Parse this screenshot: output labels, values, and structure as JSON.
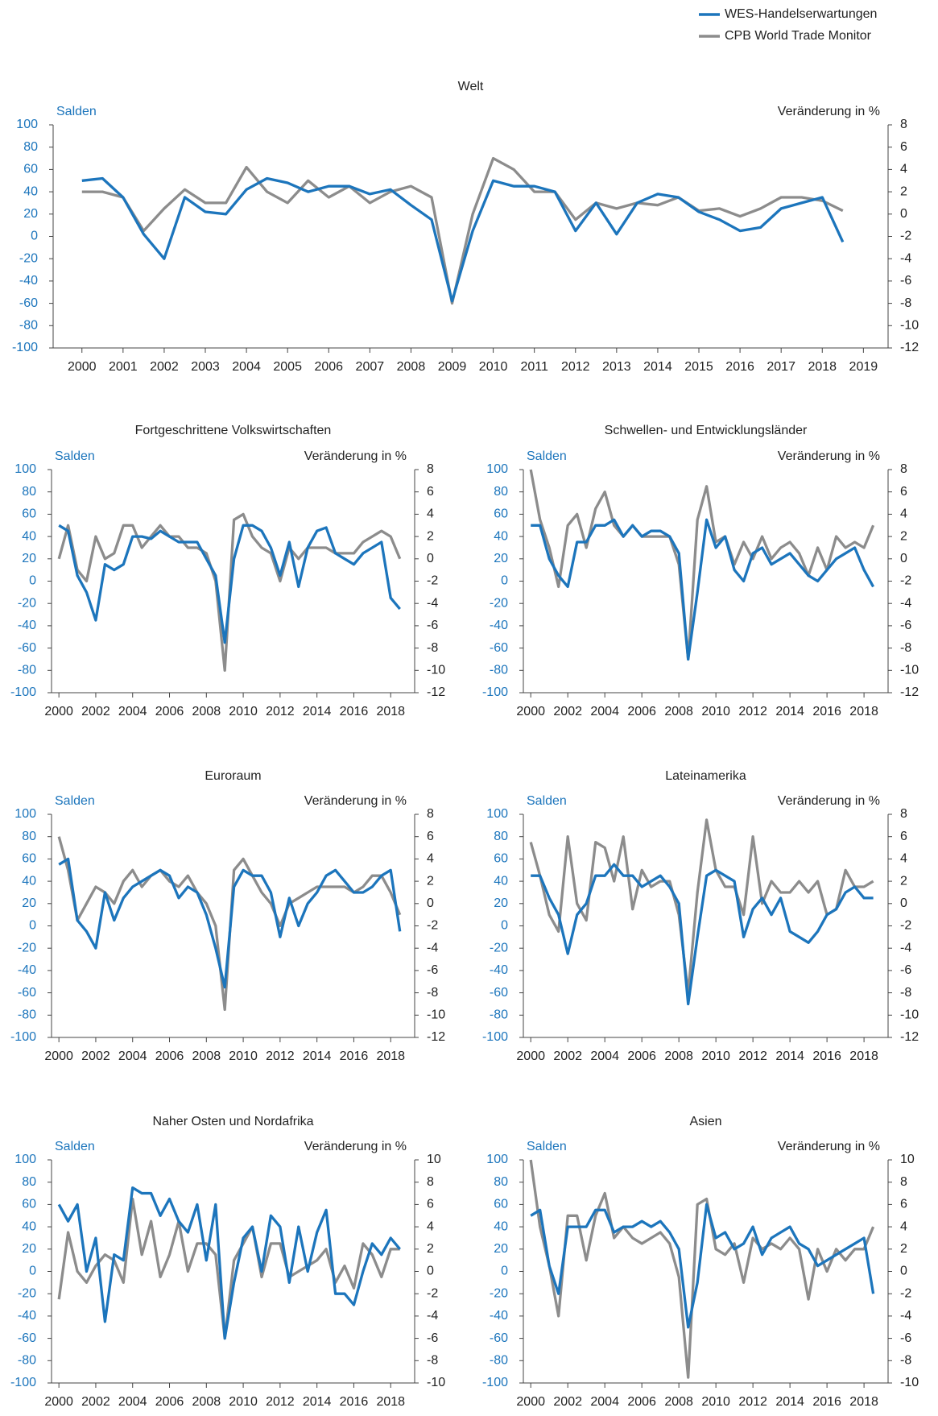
{
  "chart_data": [
    {
      "type": "line",
      "title": "Welt",
      "ylabel": "Salden",
      "y2label": "Veränderung in %",
      "legend": "upper right",
      "x": [
        2000,
        2000.5,
        2001,
        2001.5,
        2002,
        2002.5,
        2003,
        2003.5,
        2004,
        2004.5,
        2005,
        2005.5,
        2006,
        2006.5,
        2007,
        2007.5,
        2008,
        2008.5,
        2009,
        2009.5,
        2010,
        2010.5,
        2011,
        2011.5,
        2012,
        2012.5,
        2013,
        2013.5,
        2014,
        2014.5,
        2015,
        2015.5,
        2016,
        2016.5,
        2017,
        2017.5,
        2018,
        2018.5
      ],
      "xlim": [
        1999.3,
        2019.6
      ],
      "xticks": [
        2000,
        2001,
        2002,
        2003,
        2004,
        2005,
        2006,
        2007,
        2008,
        2009,
        2010,
        2011,
        2012,
        2013,
        2014,
        2015,
        2016,
        2017,
        2018,
        2019
      ],
      "ylim": [
        -100,
        100
      ],
      "yticks": [
        -100,
        -80,
        -60,
        -40,
        -20,
        0,
        20,
        40,
        60,
        80,
        100
      ],
      "y2lim": [
        -12,
        8
      ],
      "y2ticks": [
        -12,
        -10,
        -8,
        -6,
        -4,
        -2,
        0,
        2,
        4,
        6,
        8
      ],
      "series": [
        {
          "name": "WES-Handelserwartungen",
          "color": "#1c75bc",
          "values": [
            50,
            52,
            35,
            2,
            -20,
            35,
            22,
            20,
            42,
            52,
            48,
            40,
            45,
            45,
            38,
            42,
            28,
            15,
            -58,
            5,
            50,
            45,
            45,
            40,
            5,
            30,
            2,
            30,
            38,
            35,
            22,
            15,
            5,
            8,
            25,
            30,
            35,
            -5
          ]
        },
        {
          "name": "CPB World Trade Monitor",
          "color": "#8c8c8c",
          "axis": "y2",
          "values": [
            2,
            2,
            1.5,
            -1.5,
            0.5,
            2.2,
            1,
            1,
            4.2,
            2,
            1,
            3,
            1.5,
            2.5,
            1,
            2,
            2.5,
            1.5,
            -8,
            0,
            5,
            4,
            2,
            2,
            -0.5,
            1,
            0.5,
            1,
            0.8,
            1.5,
            0.3,
            0.5,
            -0.2,
            0.5,
            1.5,
            1.5,
            1.2,
            0.3
          ]
        }
      ]
    },
    {
      "type": "line",
      "title": "Fortgeschrittene Volkswirtschaften",
      "ylabel": "Salden",
      "y2label": "Veränderung in %",
      "x": [
        2000,
        2000.5,
        2001,
        2001.5,
        2002,
        2002.5,
        2003,
        2003.5,
        2004,
        2004.5,
        2005,
        2005.5,
        2006,
        2006.5,
        2007,
        2007.5,
        2008,
        2008.5,
        2009,
        2009.5,
        2010,
        2010.5,
        2011,
        2011.5,
        2012,
        2012.5,
        2013,
        2013.5,
        2014,
        2014.5,
        2015,
        2015.5,
        2016,
        2016.5,
        2017,
        2017.5,
        2018,
        2018.5
      ],
      "xlim": [
        1999.6,
        2019.3
      ],
      "xticks": [
        2000,
        2002,
        2004,
        2006,
        2008,
        2010,
        2012,
        2014,
        2016,
        2018
      ],
      "ylim": [
        -100,
        100
      ],
      "yticks": [
        -100,
        -80,
        -60,
        -40,
        -20,
        0,
        20,
        40,
        60,
        80,
        100
      ],
      "y2lim": [
        -12,
        8
      ],
      "y2ticks": [
        -12,
        -10,
        -8,
        -6,
        -4,
        -2,
        0,
        2,
        4,
        6,
        8
      ],
      "series": [
        {
          "color": "#1c75bc",
          "values": [
            50,
            45,
            5,
            -10,
            -35,
            15,
            10,
            15,
            40,
            40,
            38,
            45,
            40,
            35,
            35,
            35,
            20,
            5,
            -55,
            20,
            50,
            50,
            45,
            30,
            5,
            35,
            -5,
            30,
            45,
            48,
            25,
            20,
            15,
            25,
            30,
            35,
            -15,
            -25
          ]
        },
        {
          "color": "#8c8c8c",
          "axis": "y2",
          "values": [
            0,
            3,
            -1,
            -2,
            2,
            0,
            0.5,
            3,
            3,
            1,
            2,
            3,
            2,
            2,
            1,
            1,
            0.5,
            -2,
            -10,
            3.5,
            4,
            2,
            1,
            0.5,
            -2,
            1,
            0,
            1,
            1,
            1,
            0.5,
            0.5,
            0.5,
            1.5,
            2,
            2.5,
            2,
            0
          ]
        }
      ]
    },
    {
      "type": "line",
      "title": "Schwellen- und Entwicklungsländer",
      "ylabel": "Salden",
      "y2label": "Veränderung in %",
      "x": [
        2000,
        2000.5,
        2001,
        2001.5,
        2002,
        2002.5,
        2003,
        2003.5,
        2004,
        2004.5,
        2005,
        2005.5,
        2006,
        2006.5,
        2007,
        2007.5,
        2008,
        2008.5,
        2009,
        2009.5,
        2010,
        2010.5,
        2011,
        2011.5,
        2012,
        2012.5,
        2013,
        2013.5,
        2014,
        2014.5,
        2015,
        2015.5,
        2016,
        2016.5,
        2017,
        2017.5,
        2018,
        2018.5
      ],
      "xlim": [
        1999.6,
        2019.3
      ],
      "xticks": [
        2000,
        2002,
        2004,
        2006,
        2008,
        2010,
        2012,
        2014,
        2016,
        2018
      ],
      "ylim": [
        -100,
        100
      ],
      "yticks": [
        -100,
        -80,
        -60,
        -40,
        -20,
        0,
        20,
        40,
        60,
        80,
        100
      ],
      "y2lim": [
        -12,
        8
      ],
      "y2ticks": [
        -12,
        -10,
        -8,
        -6,
        -4,
        -2,
        0,
        2,
        4,
        6,
        8
      ],
      "series": [
        {
          "color": "#1c75bc",
          "values": [
            50,
            50,
            20,
            5,
            -5,
            35,
            35,
            50,
            50,
            55,
            40,
            50,
            40,
            45,
            45,
            40,
            25,
            -70,
            -10,
            55,
            30,
            40,
            10,
            0,
            25,
            30,
            15,
            20,
            25,
            15,
            5,
            0,
            10,
            20,
            25,
            30,
            10,
            -5
          ]
        },
        {
          "color": "#8c8c8c",
          "axis": "y2",
          "values": [
            8,
            3.5,
            1,
            -2.5,
            3,
            4,
            1,
            4.5,
            6,
            3,
            2,
            3,
            2,
            2,
            2,
            2,
            -0.5,
            -9,
            3.5,
            6.5,
            1.5,
            2,
            -0.5,
            1.5,
            0,
            2,
            0,
            1,
            1.5,
            0.5,
            -1.5,
            1,
            -1,
            2,
            1,
            1.5,
            1,
            3
          ]
        }
      ]
    },
    {
      "type": "line",
      "title": "Euroraum",
      "ylabel": "Salden",
      "y2label": "Veränderung in %",
      "x": [
        2000,
        2000.5,
        2001,
        2001.5,
        2002,
        2002.5,
        2003,
        2003.5,
        2004,
        2004.5,
        2005,
        2005.5,
        2006,
        2006.5,
        2007,
        2007.5,
        2008,
        2008.5,
        2009,
        2009.5,
        2010,
        2010.5,
        2011,
        2011.5,
        2012,
        2012.5,
        2013,
        2013.5,
        2014,
        2014.5,
        2015,
        2015.5,
        2016,
        2016.5,
        2017,
        2017.5,
        2018,
        2018.5
      ],
      "xlim": [
        1999.6,
        2019.3
      ],
      "xticks": [
        2000,
        2002,
        2004,
        2006,
        2008,
        2010,
        2012,
        2014,
        2016,
        2018
      ],
      "ylim": [
        -100,
        100
      ],
      "yticks": [
        -100,
        -80,
        -60,
        -40,
        -20,
        0,
        20,
        40,
        60,
        80,
        100
      ],
      "y2lim": [
        -12,
        8
      ],
      "y2ticks": [
        -12,
        -10,
        -8,
        -6,
        -4,
        -2,
        0,
        2,
        4,
        6,
        8
      ],
      "series": [
        {
          "color": "#1c75bc",
          "values": [
            55,
            60,
            5,
            -5,
            -20,
            30,
            5,
            25,
            35,
            40,
            45,
            50,
            45,
            25,
            35,
            30,
            10,
            -20,
            -55,
            35,
            50,
            45,
            45,
            30,
            -10,
            25,
            0,
            20,
            30,
            45,
            50,
            40,
            30,
            30,
            35,
            45,
            50,
            -5
          ]
        },
        {
          "color": "#8c8c8c",
          "axis": "y2",
          "values": [
            6,
            3,
            -1.5,
            0,
            1.5,
            1,
            0,
            2,
            3,
            1.5,
            2.5,
            3,
            2,
            1.5,
            2.5,
            1,
            0,
            -2,
            -9.5,
            3,
            4,
            2.5,
            1,
            0,
            -2,
            0,
            0.5,
            1,
            1.5,
            1.5,
            1.5,
            1.5,
            1,
            1.5,
            2.5,
            2.5,
            1,
            -1
          ]
        }
      ]
    },
    {
      "type": "line",
      "title": "Lateinamerika",
      "ylabel": "Salden",
      "y2label": "Veränderung in %",
      "x": [
        2000,
        2000.5,
        2001,
        2001.5,
        2002,
        2002.5,
        2003,
        2003.5,
        2004,
        2004.5,
        2005,
        2005.5,
        2006,
        2006.5,
        2007,
        2007.5,
        2008,
        2008.5,
        2009,
        2009.5,
        2010,
        2010.5,
        2011,
        2011.5,
        2012,
        2012.5,
        2013,
        2013.5,
        2014,
        2014.5,
        2015,
        2015.5,
        2016,
        2016.5,
        2017,
        2017.5,
        2018,
        2018.5
      ],
      "xlim": [
        1999.6,
        2019.3
      ],
      "xticks": [
        2000,
        2002,
        2004,
        2006,
        2008,
        2010,
        2012,
        2014,
        2016,
        2018
      ],
      "ylim": [
        -100,
        100
      ],
      "yticks": [
        -100,
        -80,
        -60,
        -40,
        -20,
        0,
        20,
        40,
        60,
        80,
        100
      ],
      "y2lim": [
        -12,
        8
      ],
      "y2ticks": [
        -12,
        -10,
        -8,
        -6,
        -4,
        -2,
        0,
        2,
        4,
        6,
        8
      ],
      "series": [
        {
          "color": "#1c75bc",
          "values": [
            45,
            45,
            25,
            10,
            -25,
            10,
            20,
            45,
            45,
            55,
            45,
            45,
            35,
            40,
            45,
            35,
            20,
            -70,
            -10,
            45,
            50,
            45,
            40,
            -10,
            15,
            25,
            10,
            25,
            -5,
            -10,
            -15,
            -5,
            10,
            15,
            30,
            35,
            25,
            25
          ]
        },
        {
          "color": "#8c8c8c",
          "axis": "y2",
          "values": [
            5.5,
            2.5,
            -1,
            -2.5,
            6,
            0,
            -1.5,
            5.5,
            5,
            2,
            6,
            -0.5,
            3,
            1.5,
            2,
            2,
            -1,
            -8,
            1,
            7.5,
            3,
            1.5,
            1.5,
            -1,
            6,
            0,
            2,
            1,
            1,
            2,
            1,
            2,
            -1,
            -0.5,
            3,
            1.5,
            1.5,
            2
          ]
        }
      ]
    },
    {
      "type": "line",
      "title": "Naher Osten und Nordafrika",
      "ylabel": "Salden",
      "y2label": "Veränderung in %",
      "x": [
        2000,
        2000.5,
        2001,
        2001.5,
        2002,
        2002.5,
        2003,
        2003.5,
        2004,
        2004.5,
        2005,
        2005.5,
        2006,
        2006.5,
        2007,
        2007.5,
        2008,
        2008.5,
        2009,
        2009.5,
        2010,
        2010.5,
        2011,
        2011.5,
        2012,
        2012.5,
        2013,
        2013.5,
        2014,
        2014.5,
        2015,
        2015.5,
        2016,
        2016.5,
        2017,
        2017.5,
        2018,
        2018.5
      ],
      "xlim": [
        1999.6,
        2019.3
      ],
      "xticks": [
        2000,
        2002,
        2004,
        2006,
        2008,
        2010,
        2012,
        2014,
        2016,
        2018
      ],
      "ylim": [
        -100,
        100
      ],
      "yticks": [
        -100,
        -80,
        -60,
        -40,
        -20,
        0,
        20,
        40,
        60,
        80,
        100
      ],
      "y2lim": [
        -10,
        10
      ],
      "y2ticks": [
        -10,
        -8,
        -6,
        -4,
        -2,
        0,
        2,
        4,
        6,
        8,
        10
      ],
      "series": [
        {
          "color": "#1c75bc",
          "values": [
            60,
            45,
            60,
            0,
            30,
            -45,
            15,
            10,
            75,
            70,
            70,
            50,
            65,
            45,
            35,
            60,
            10,
            60,
            -60,
            -10,
            30,
            40,
            0,
            50,
            40,
            -10,
            40,
            0,
            35,
            55,
            -20,
            -20,
            -30,
            0,
            25,
            15,
            30,
            20
          ]
        },
        {
          "color": "#8c8c8c",
          "axis": "y2",
          "values": [
            -2.5,
            3.5,
            0,
            -1,
            0.5,
            1.5,
            1,
            -1,
            6.5,
            1.5,
            4.5,
            -0.5,
            1.5,
            4.5,
            0,
            2.5,
            2.5,
            1.5,
            -6,
            1,
            2.5,
            4,
            -0.5,
            2.5,
            2.5,
            -0.5,
            0,
            0.5,
            1,
            2,
            -1,
            0.5,
            -1.5,
            2.5,
            1.5,
            -0.5,
            2,
            2
          ]
        }
      ]
    },
    {
      "type": "line",
      "title": "Asien",
      "ylabel": "Salden",
      "y2label": "Veränderung in %",
      "x": [
        2000,
        2000.5,
        2001,
        2001.5,
        2002,
        2002.5,
        2003,
        2003.5,
        2004,
        2004.5,
        2005,
        2005.5,
        2006,
        2006.5,
        2007,
        2007.5,
        2008,
        2008.5,
        2009,
        2009.5,
        2010,
        2010.5,
        2011,
        2011.5,
        2012,
        2012.5,
        2013,
        2013.5,
        2014,
        2014.5,
        2015,
        2015.5,
        2016,
        2016.5,
        2017,
        2017.5,
        2018,
        2018.5
      ],
      "xlim": [
        1999.6,
        2019.3
      ],
      "xticks": [
        2000,
        2002,
        2004,
        2006,
        2008,
        2010,
        2012,
        2014,
        2016,
        2018
      ],
      "ylim": [
        -100,
        100
      ],
      "yticks": [
        -100,
        -80,
        -60,
        -40,
        -20,
        0,
        20,
        40,
        60,
        80,
        100
      ],
      "y2lim": [
        -10,
        10
      ],
      "y2ticks": [
        -10,
        -8,
        -6,
        -4,
        -2,
        0,
        2,
        4,
        6,
        8,
        10
      ],
      "series": [
        {
          "color": "#1c75bc",
          "values": [
            50,
            55,
            5,
            -20,
            40,
            40,
            40,
            55,
            55,
            35,
            40,
            40,
            45,
            40,
            45,
            35,
            20,
            -50,
            -10,
            60,
            30,
            35,
            20,
            25,
            40,
            15,
            30,
            35,
            40,
            25,
            20,
            5,
            10,
            15,
            20,
            25,
            30,
            -20
          ]
        },
        {
          "color": "#8c8c8c",
          "axis": "y2",
          "values": [
            10,
            4,
            0.5,
            -4,
            5,
            5,
            1,
            5,
            7,
            3,
            4,
            3,
            2.5,
            3,
            3.5,
            2.5,
            -0.5,
            -9.5,
            6,
            6.5,
            2,
            1.5,
            2.5,
            -1,
            3,
            2,
            2.5,
            2,
            3,
            2,
            -2.5,
            2,
            0,
            2,
            1,
            2,
            2,
            4
          ]
        }
      ]
    }
  ]
}
